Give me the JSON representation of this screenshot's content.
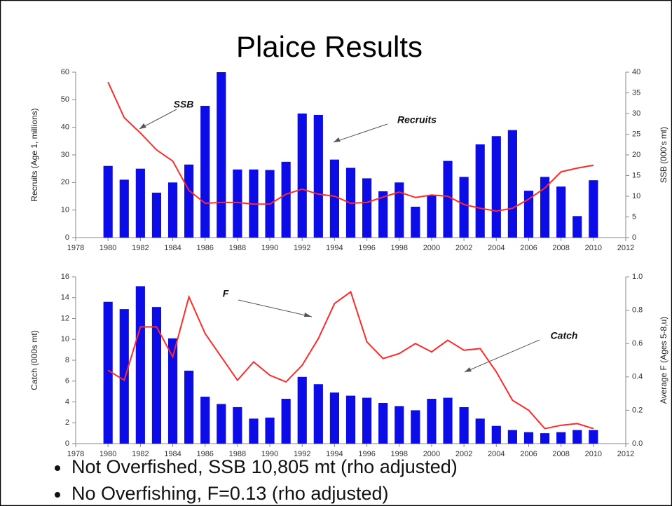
{
  "title": "Plaice Results",
  "chart_data": [
    {
      "type": "combo",
      "ylabel": "Recruits (Age 1, millions)",
      "y2label": "SSB (000's mt)",
      "x": [
        1980,
        1981,
        1982,
        1983,
        1984,
        1985,
        1986,
        1987,
        1988,
        1989,
        1990,
        1991,
        1992,
        1993,
        1994,
        1995,
        1996,
        1997,
        1998,
        1999,
        2000,
        2001,
        2002,
        2003,
        2004,
        2005,
        2006,
        2007,
        2008,
        2009,
        2010
      ],
      "series": [
        {
          "name": "Recruits",
          "type": "bar",
          "color": "#0c0ce6",
          "values": [
            26,
            21,
            25,
            16.3,
            20,
            26.5,
            47.8,
            60,
            24.7,
            24.7,
            24.5,
            27.5,
            45,
            44.5,
            28.3,
            25.3,
            21.5,
            16.8,
            20,
            11.2,
            15.2,
            27.8,
            22,
            33.8,
            36.8,
            39,
            17,
            22,
            18.5,
            7.8,
            20.8
          ]
        },
        {
          "name": "SSB",
          "type": "line",
          "axis": "y2",
          "color": "#ff2a2a",
          "values": [
            37.6,
            29,
            25.3,
            21.2,
            18.5,
            11.4,
            8.3,
            8.5,
            8.5,
            8.1,
            8.1,
            10.5,
            11.7,
            10.5,
            10,
            8.3,
            8.5,
            9.8,
            11,
            9.7,
            10.3,
            10,
            8,
            7.1,
            6.4,
            7.1,
            9.3,
            12,
            15.9,
            16.8,
            17.5
          ]
        }
      ],
      "xlim": [
        1978,
        2012
      ],
      "xticks": [
        1978,
        1980,
        1982,
        1984,
        1986,
        1988,
        1990,
        1992,
        1994,
        1996,
        1998,
        2000,
        2002,
        2004,
        2006,
        2008,
        2010,
        2012
      ],
      "ylim": [
        0,
        60
      ],
      "yticks": [
        0,
        10,
        20,
        30,
        40,
        50,
        60
      ],
      "y2lim": [
        0,
        40
      ],
      "y2ticks": [
        0,
        5,
        10,
        15,
        20,
        25,
        30,
        35,
        40
      ]
    },
    {
      "type": "combo",
      "ylabel": "Catch (000s mt)",
      "y2label": "Average F (Ages 5-8,u)",
      "x": [
        1980,
        1981,
        1982,
        1983,
        1984,
        1985,
        1986,
        1987,
        1988,
        1989,
        1990,
        1991,
        1992,
        1993,
        1994,
        1995,
        1996,
        1997,
        1998,
        1999,
        2000,
        2001,
        2002,
        2003,
        2004,
        2005,
        2006,
        2007,
        2008,
        2009,
        2010
      ],
      "series": [
        {
          "name": "Catch",
          "type": "bar",
          "color": "#0c0ce6",
          "values": [
            13.6,
            12.9,
            15.1,
            13.1,
            10.1,
            7,
            4.5,
            3.8,
            3.5,
            2.4,
            2.5,
            4.3,
            6.4,
            5.7,
            4.9,
            4.6,
            4.4,
            3.9,
            3.6,
            3.2,
            4.3,
            4.4,
            3.5,
            2.4,
            1.7,
            1.3,
            1.1,
            1,
            1.1,
            1.3,
            1.3
          ]
        },
        {
          "name": "F",
          "type": "line",
          "axis": "y2",
          "color": "#ff2a2a",
          "values": [
            0.44,
            0.38,
            0.7,
            0.7,
            0.52,
            0.88,
            0.66,
            0.52,
            0.38,
            0.49,
            0.41,
            0.37,
            0.47,
            0.63,
            0.84,
            0.91,
            0.61,
            0.51,
            0.54,
            0.6,
            0.55,
            0.62,
            0.56,
            0.57,
            0.43,
            0.26,
            0.2,
            0.09,
            0.11,
            0.12,
            0.09
          ]
        }
      ],
      "xlim": [
        1978,
        2012
      ],
      "xticks": [
        1978,
        1980,
        1982,
        1984,
        1986,
        1988,
        1990,
        1992,
        1994,
        1996,
        1998,
        2000,
        2002,
        2004,
        2006,
        2008,
        2010,
        2012
      ],
      "ylim": [
        0,
        16
      ],
      "yticks": [
        0,
        2,
        4,
        6,
        8,
        10,
        12,
        14,
        16
      ],
      "y2lim": [
        0,
        1
      ],
      "y2ticks": [
        {
          "value": 0,
          "label": "0.0"
        },
        0.2,
        0.4,
        0.6,
        0.8,
        {
          "value": 1,
          "label": "1.0"
        }
      ]
    }
  ],
  "bullets": [
    "Not Overfished, SSB 10,805 mt (rho adjusted)",
    "No Overfishing, F=0.13 (rho adjusted)"
  ]
}
